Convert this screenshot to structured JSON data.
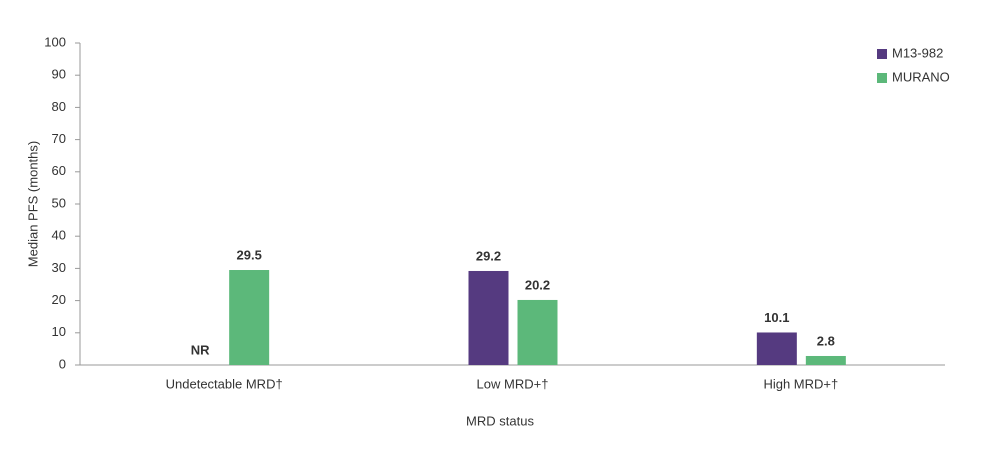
{
  "chart_data": {
    "type": "bar",
    "categories": [
      "Undetectable MRD†",
      "Low MRD+†",
      "High MRD+†"
    ],
    "series": [
      {
        "name": "M13-982",
        "color": "#553a80",
        "values": [
          null,
          29.2,
          10.1
        ],
        "value_labels": [
          "NR",
          "29.2",
          "10.1"
        ]
      },
      {
        "name": "MURANO",
        "color": "#5cb87a",
        "values": [
          29.5,
          20.2,
          2.8
        ]
      }
    ],
    "xlabel": "MRD status",
    "ylabel": "Median PFS (months)",
    "ylim": [
      0,
      100
    ],
    "yticks": [
      0,
      10,
      20,
      30,
      40,
      50,
      60,
      70,
      80,
      90,
      100
    ],
    "legend": "upper right"
  }
}
